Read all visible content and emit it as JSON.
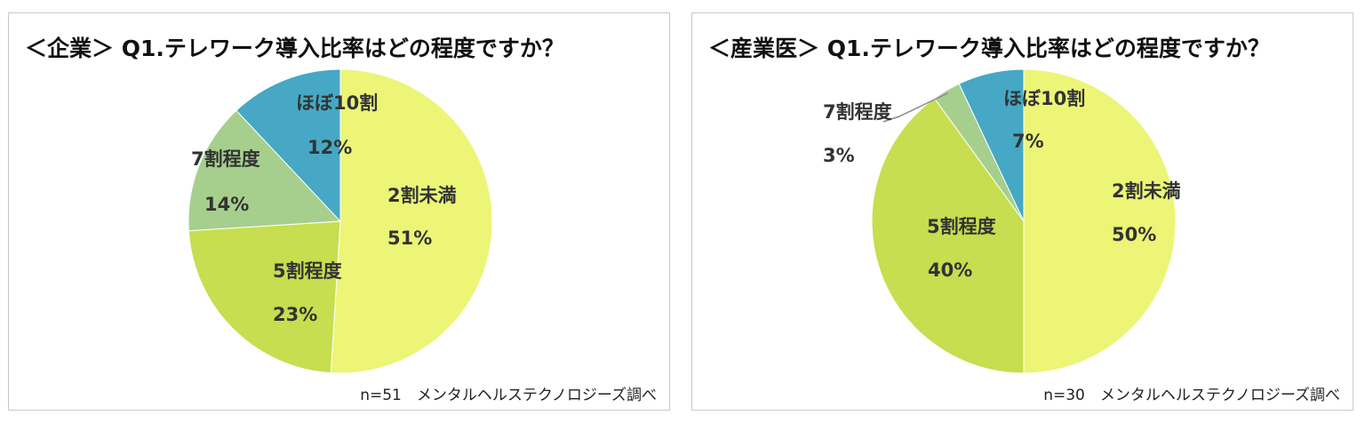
{
  "chart_data": [
    {
      "type": "pie",
      "title": "＜企業＞ Q1.テレワーク導入比率はどの程度ですか？",
      "note": "n=51　メンタルヘルステクノロジーズ調べ",
      "slices": [
        {
          "name": "2割未満",
          "value": 51,
          "value_label": "51%",
          "color": "#ecf576"
        },
        {
          "name": "5割程度",
          "value": 23,
          "value_label": "23%",
          "color": "#c6de4f"
        },
        {
          "name": "7割程度",
          "value": 14,
          "value_label": "14%",
          "color": "#a6cf8e"
        },
        {
          "name": "ほぼ10割",
          "value": 12,
          "value_label": "12%",
          "color": "#46a8c4"
        }
      ]
    },
    {
      "type": "pie",
      "title": "＜産業医＞ Q1.テレワーク導入比率はどの程度ですか？",
      "note": "n=30　メンタルヘルステクノロジーズ調べ",
      "slices": [
        {
          "name": "2割未満",
          "value": 50,
          "value_label": "50%",
          "color": "#ecf576"
        },
        {
          "name": "5割程度",
          "value": 40,
          "value_label": "40%",
          "color": "#c6de4f"
        },
        {
          "name": "7割程度",
          "value": 3,
          "value_label": "3%",
          "color": "#a6cf8e"
        },
        {
          "name": "ほぼ10割",
          "value": 7,
          "value_label": "7%",
          "color": "#46a8c4"
        }
      ]
    }
  ]
}
